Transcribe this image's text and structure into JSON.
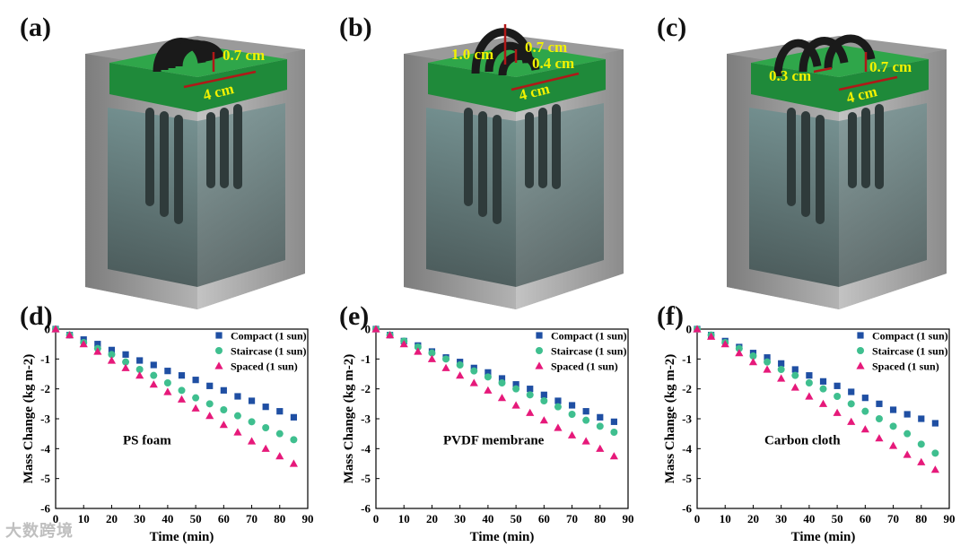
{
  "panel_labels": [
    "(a)",
    "(b)",
    "(c)",
    "(d)",
    "(e)",
    "(f)"
  ],
  "diagrams": [
    {
      "labels": [
        "0.7 cm",
        "4 cm"
      ]
    },
    {
      "labels": [
        "1.0 cm",
        "0.7 cm",
        "0.4 cm",
        "4 cm"
      ]
    },
    {
      "labels": [
        "0.3 cm",
        "0.7 cm",
        "4 cm"
      ]
    }
  ],
  "colors": {
    "compact": "#1f4fa3",
    "staircase": "#3fbf8f",
    "spaced": "#e6197a",
    "annotation": "#f2f200",
    "dimension_line": "#b01818",
    "foam": "#1f8a3a"
  },
  "chart_data": [
    {
      "type": "scatter",
      "title": "PS foam",
      "xlabel": "Time (min)",
      "ylabel": "Mass Change (kg m-2)",
      "xlim": [
        0,
        90
      ],
      "ylim": [
        -6,
        0
      ],
      "xticks": [
        0,
        10,
        20,
        30,
        40,
        50,
        60,
        70,
        80,
        90
      ],
      "yticks": [
        0,
        -1,
        -2,
        -3,
        -4,
        -5,
        -6
      ],
      "x": [
        0,
        5,
        10,
        15,
        20,
        25,
        30,
        35,
        40,
        45,
        50,
        55,
        60,
        65,
        70,
        75,
        80,
        85
      ],
      "series": [
        {
          "name": "Compact (1 sun)",
          "marker": "square",
          "values": [
            0,
            -0.2,
            -0.35,
            -0.5,
            -0.7,
            -0.85,
            -1.05,
            -1.2,
            -1.4,
            -1.55,
            -1.7,
            -1.9,
            -2.05,
            -2.25,
            -2.4,
            -2.6,
            -2.75,
            -2.95
          ]
        },
        {
          "name": "Staircase (1 sun)",
          "marker": "circle",
          "values": [
            0,
            -0.2,
            -0.45,
            -0.65,
            -0.85,
            -1.1,
            -1.35,
            -1.55,
            -1.8,
            -2.05,
            -2.3,
            -2.5,
            -2.7,
            -2.9,
            -3.1,
            -3.3,
            -3.5,
            -3.7
          ]
        },
        {
          "name": "Spaced (1 sun)",
          "marker": "triangle",
          "values": [
            0,
            -0.2,
            -0.5,
            -0.75,
            -1.05,
            -1.3,
            -1.55,
            -1.85,
            -2.1,
            -2.35,
            -2.65,
            -2.9,
            -3.2,
            -3.45,
            -3.75,
            -4.0,
            -4.25,
            -4.5
          ]
        }
      ]
    },
    {
      "type": "scatter",
      "title": "PVDF membrane",
      "xlabel": "Time (min)",
      "ylabel": "Mass Change (kg m-2)",
      "xlim": [
        0,
        90
      ],
      "ylim": [
        -6,
        0
      ],
      "xticks": [
        0,
        10,
        20,
        30,
        40,
        50,
        60,
        70,
        80,
        90
      ],
      "yticks": [
        0,
        -1,
        -2,
        -3,
        -4,
        -5,
        -6
      ],
      "x": [
        0,
        5,
        10,
        15,
        20,
        25,
        30,
        35,
        40,
        45,
        50,
        55,
        60,
        65,
        70,
        75,
        80,
        85
      ],
      "series": [
        {
          "name": "Compact (1 sun)",
          "marker": "square",
          "values": [
            0,
            -0.2,
            -0.4,
            -0.55,
            -0.75,
            -0.95,
            -1.1,
            -1.3,
            -1.45,
            -1.65,
            -1.85,
            -2.0,
            -2.2,
            -2.4,
            -2.55,
            -2.75,
            -2.95,
            -3.1
          ]
        },
        {
          "name": "Staircase (1 sun)",
          "marker": "circle",
          "values": [
            0,
            -0.2,
            -0.4,
            -0.6,
            -0.8,
            -1.0,
            -1.2,
            -1.4,
            -1.6,
            -1.8,
            -2.0,
            -2.2,
            -2.4,
            -2.6,
            -2.85,
            -3.05,
            -3.25,
            -3.45
          ]
        },
        {
          "name": "Spaced (1 sun)",
          "marker": "triangle",
          "values": [
            0,
            -0.2,
            -0.5,
            -0.75,
            -1.0,
            -1.3,
            -1.55,
            -1.8,
            -2.05,
            -2.3,
            -2.55,
            -2.8,
            -3.05,
            -3.3,
            -3.55,
            -3.75,
            -4.0,
            -4.25
          ]
        }
      ]
    },
    {
      "type": "scatter",
      "title": "Carbon cloth",
      "xlabel": "Time (min)",
      "ylabel": "Mass Change (kg m-2)",
      "xlim": [
        0,
        90
      ],
      "ylim": [
        -6,
        0
      ],
      "xticks": [
        0,
        10,
        20,
        30,
        40,
        50,
        60,
        70,
        80,
        90
      ],
      "yticks": [
        0,
        -1,
        -2,
        -3,
        -4,
        -5,
        -6
      ],
      "x": [
        0,
        5,
        10,
        15,
        20,
        25,
        30,
        35,
        40,
        45,
        50,
        55,
        60,
        65,
        70,
        75,
        80,
        85
      ],
      "series": [
        {
          "name": "Compact (1 sun)",
          "marker": "square",
          "values": [
            0,
            -0.2,
            -0.4,
            -0.6,
            -0.8,
            -0.95,
            -1.15,
            -1.35,
            -1.55,
            -1.75,
            -1.9,
            -2.1,
            -2.3,
            -2.5,
            -2.7,
            -2.85,
            -3.0,
            -3.15
          ]
        },
        {
          "name": "Staircase (1 sun)",
          "marker": "circle",
          "values": [
            0,
            -0.2,
            -0.45,
            -0.65,
            -0.9,
            -1.1,
            -1.35,
            -1.55,
            -1.8,
            -2.0,
            -2.25,
            -2.5,
            -2.75,
            -3.0,
            -3.25,
            -3.5,
            -3.85,
            -4.15
          ]
        },
        {
          "name": "Spaced (1 sun)",
          "marker": "triangle",
          "values": [
            0,
            -0.25,
            -0.5,
            -0.8,
            -1.1,
            -1.35,
            -1.65,
            -1.95,
            -2.25,
            -2.5,
            -2.8,
            -3.1,
            -3.35,
            -3.65,
            -3.9,
            -4.2,
            -4.45,
            -4.7
          ]
        }
      ]
    }
  ],
  "watermark": "大数跨境"
}
